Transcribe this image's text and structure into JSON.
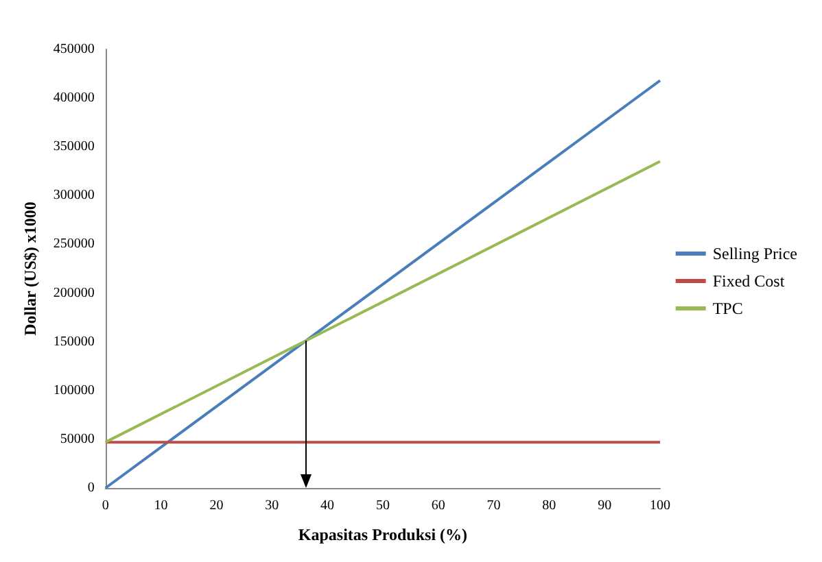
{
  "chart_data": {
    "type": "line",
    "xlabel": "Kapasitas Produksi (%)",
    "ylabel": "Dollar (US$) x1000",
    "x": [
      0,
      100
    ],
    "series": [
      {
        "name": "Selling Price",
        "color": "#4a7ebb",
        "values": [
          0,
          418000
        ]
      },
      {
        "name": "Fixed Cost",
        "color": "#be4b48",
        "values": [
          47000,
          47000
        ]
      },
      {
        "name": "TPC",
        "color": "#98b954",
        "values": [
          47000,
          335000
        ]
      }
    ],
    "xlim": [
      0,
      100
    ],
    "xticks": [
      0,
      10,
      20,
      30,
      40,
      50,
      60,
      70,
      80,
      90,
      100
    ],
    "ylim": [
      0,
      450000
    ],
    "yticks": [
      0,
      50000,
      100000,
      150000,
      200000,
      250000,
      300000,
      350000,
      400000,
      450000
    ],
    "grid": false,
    "legend": "right",
    "marker": "none"
  }
}
